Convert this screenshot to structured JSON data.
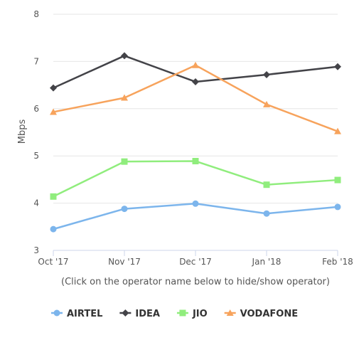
{
  "chart_data": {
    "type": "line",
    "title": "",
    "ylabel": "Mbps",
    "xlabel": "",
    "categories": [
      "Oct '17",
      "Nov '17",
      "Dec '17",
      "Jan '18",
      "Feb '18"
    ],
    "ylim": [
      3,
      8
    ],
    "yticks": [
      3,
      4,
      5,
      6,
      7,
      8
    ],
    "grid": "horizontal",
    "legend_position": "bottom",
    "note": "(Click on the operator name below to hide/show operator)",
    "series": [
      {
        "name": "AIRTEL",
        "color": "#7cb5ec",
        "marker": "circle",
        "values": [
          3.45,
          3.88,
          3.99,
          3.78,
          3.92
        ]
      },
      {
        "name": "IDEA",
        "color": "#434348",
        "marker": "diamond",
        "values": [
          6.44,
          7.12,
          6.57,
          6.72,
          6.89
        ]
      },
      {
        "name": "JIO",
        "color": "#90ed7d",
        "marker": "square",
        "values": [
          4.14,
          4.88,
          4.89,
          4.39,
          4.49
        ]
      },
      {
        "name": "VODAFONE",
        "color": "#f7a35c",
        "marker": "triangle",
        "values": [
          5.93,
          6.23,
          6.92,
          6.09,
          5.52
        ]
      }
    ]
  }
}
